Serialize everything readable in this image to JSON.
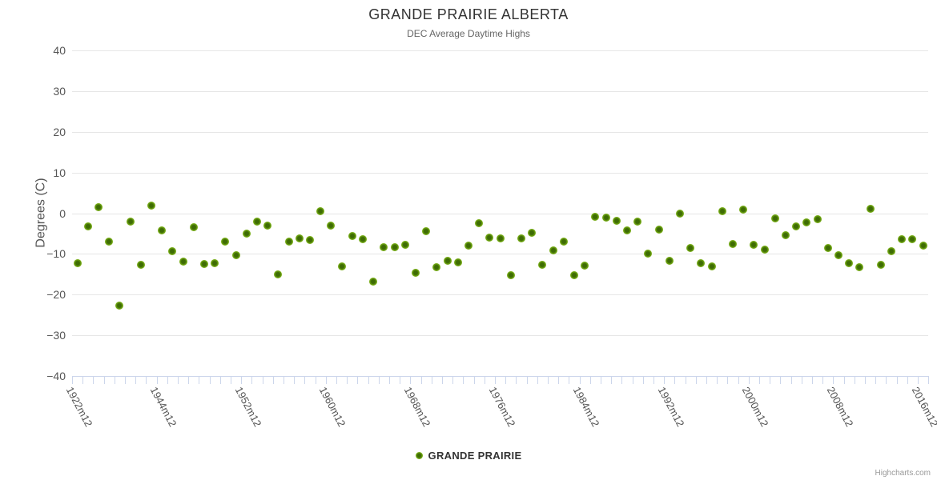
{
  "title": "GRANDE PRAIRIE ALBERTA",
  "subtitle": "DEC Average Daytime Highs",
  "legend": {
    "label": "GRANDE PRAIRIE"
  },
  "credits": "Highcharts.com",
  "colors": {
    "marker_inner": "#3e6c04",
    "marker_outer": "#74aa14",
    "grid": "#e6e6e6",
    "axis_line": "#ccd6eb",
    "title_text": "#333333",
    "subtitle_text": "#666666",
    "axis_label_text": "#555555",
    "credits_text": "#999999"
  },
  "chart_data": {
    "type": "scatter",
    "title": "GRANDE PRAIRIE ALBERTA",
    "subtitle": "DEC Average Daytime Highs",
    "ylabel": "Degrees (C)",
    "xlabel": "",
    "ylim": [
      -40,
      40
    ],
    "y_ticks": [
      40,
      30,
      20,
      10,
      0,
      -10,
      -20,
      -30,
      -40
    ],
    "grid": true,
    "legend_position": "bottom",
    "x_tick_labels": [
      "1922m12",
      "1944m12",
      "1952m12",
      "1960m12",
      "1968m12",
      "1976m12",
      "1984m12",
      "1992m12",
      "2000m12",
      "2008m12",
      "2016m12"
    ],
    "x_tick_positions": [
      0,
      8,
      16,
      24,
      32,
      40,
      48,
      56,
      64,
      72,
      80
    ],
    "series": [
      {
        "name": "GRANDE PRAIRIE",
        "values": [
          -12.2,
          -3.2,
          1.5,
          -6.9,
          -22.8,
          -2.1,
          -12.7,
          1.9,
          -4.3,
          -9.4,
          -11.9,
          -3.4,
          -12.5,
          -12.3,
          -6.9,
          -10.4,
          -5.1,
          -2.1,
          -3.1,
          -15.1,
          -6.9,
          -6.1,
          -6.5,
          0.4,
          -3.0,
          -13.0,
          -5.6,
          -6.3,
          -16.8,
          -8.3,
          -8.4,
          -7.7,
          -14.6,
          -4.4,
          -13.3,
          -11.6,
          -12.0,
          -8.0,
          -2.4,
          -5.9,
          -6.1,
          -15.2,
          -6.1,
          -4.8,
          -12.6,
          -9.1,
          -6.9,
          -15.3,
          -12.8,
          -0.9,
          -1.0,
          -1.8,
          -4.3,
          -2.1,
          -9.9,
          -4.0,
          -11.6,
          0.0,
          -8.5,
          -12.3,
          -13.1,
          0.5,
          -7.6,
          0.9,
          -7.7,
          -8.9,
          -1.2,
          -5.5,
          -3.3,
          -2.2,
          -1.4,
          -8.5,
          -10.4,
          -12.3,
          -13.2,
          1.0,
          -12.7,
          -9.4,
          -6.3,
          -6.3,
          -8.0
        ]
      }
    ]
  }
}
